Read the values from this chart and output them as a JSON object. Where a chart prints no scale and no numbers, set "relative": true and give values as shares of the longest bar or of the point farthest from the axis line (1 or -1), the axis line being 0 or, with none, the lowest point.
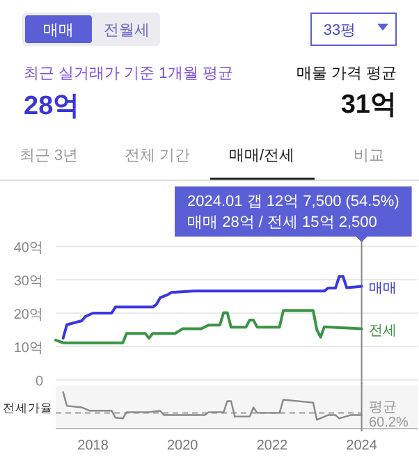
{
  "chart_data": [
    {
      "type": "other",
      "annotations": [
        "매매",
        "전월세",
        "33평",
        "최근 실거래가 기준 1개월 평균",
        "28억",
        "매물 가격 평균",
        "31억",
        "최근 3년",
        "전체 기간",
        "매매/전세",
        "비교"
      ]
    },
    {
      "type": "line",
      "xlim": [
        "2017-03",
        "2025-04"
      ],
      "xticks": [
        "2018",
        "2020",
        "2022",
        "2024"
      ],
      "ylim": [
        0,
        42
      ],
      "yticks": [
        0,
        {
          "value": 10,
          "label": "10억"
        },
        {
          "value": 20,
          "label": "20억"
        },
        {
          "value": 30,
          "label": "30억"
        },
        {
          "value": 40,
          "label": "40억"
        }
      ],
      "grid": "y",
      "tick_labels": "y",
      "marker": "none",
      "line_style": "solid",
      "series": [
        {
          "name": "매매",
          "color": "#3b37e0",
          "x": [
            "2017-05",
            "2017-06",
            "2017-10",
            "2017-11",
            "2018-01",
            "2018-06",
            "2018-07",
            "2019-05",
            "2019-06",
            "2019-07",
            "2019-09",
            "2019-10",
            "2020-04",
            "2023-03",
            "2023-04",
            "2023-06",
            "2023-07",
            "2023-08",
            "2023-09",
            "2024-01"
          ],
          "values": [
            12.5,
            16.5,
            17.7,
            19,
            20,
            20,
            21.8,
            21.8,
            22.6,
            24.6,
            25.5,
            26.2,
            26.6,
            26.6,
            27.5,
            27.5,
            31,
            31,
            27.6,
            28
          ]
        },
        {
          "name": "전세",
          "color": "#3a9445",
          "x": [
            "2017-03",
            "2017-05",
            "2018-09",
            "2018-10",
            "2019-03",
            "2019-04",
            "2019-05",
            "2019-11",
            "2020-01",
            "2020-06",
            "2020-08",
            "2020-11",
            "2020-12",
            "2021-01",
            "2021-02",
            "2021-06",
            "2021-07",
            "2021-08",
            "2021-09",
            "2022-03",
            "2022-04",
            "2022-12",
            "2023-01",
            "2023-02",
            "2023-03",
            "2024-01"
          ],
          "values": [
            11.9,
            11.1,
            11.1,
            13.9,
            13.9,
            12.5,
            13.9,
            13.9,
            15.3,
            15.3,
            16.4,
            16.4,
            20.1,
            20.1,
            15.8,
            15.8,
            17.9,
            17.9,
            15.8,
            15.8,
            20.8,
            20.8,
            15,
            12.8,
            15.9,
            15.3
          ]
        }
      ],
      "ref_lines": [
        {
          "axis": "x",
          "value": "2024-01",
          "color": "#888888"
        }
      ],
      "annotations": [
        "2024.01  갭 12억 7,500 (54.5%)",
        "매매 28억 / 전세 15억 2,500"
      ]
    },
    {
      "type": "line",
      "relative": true,
      "ylabel": "전세가율",
      "xlim": [
        "2017-03",
        "2025-04"
      ],
      "xticks": [
        "2018",
        "2020",
        "2022",
        "2024"
      ],
      "tick_labels": "x",
      "marker": "none",
      "line_style": "solid",
      "series": [
        {
          "color": "#888888",
          "x": [
            "2017-05",
            "2017-06",
            "2017-10",
            "2017-12",
            "2018-06",
            "2018-07",
            "2018-09",
            "2018-10",
            "2019-04",
            "2019-07",
            "2019-08",
            "2020-07",
            "2020-08",
            "2020-12",
            "2021-01",
            "2021-02",
            "2021-03",
            "2021-07",
            "2021-08",
            "2021-09",
            "2022-03",
            "2022-04",
            "2022-12",
            "2023-01",
            "2023-04",
            "2023-06",
            "2023-07",
            "2023-10",
            "2024-01"
          ],
          "values": [
            1.0,
            0.62,
            0.58,
            0.49,
            0.49,
            0.3,
            0.28,
            0.45,
            0.45,
            0.49,
            0.37,
            0.37,
            0.45,
            0.45,
            0.75,
            0.75,
            0.33,
            0.33,
            0.58,
            0.43,
            0.43,
            0.79,
            0.71,
            0.24,
            0.37,
            0.37,
            0.28,
            0.37,
            0.37
          ]
        }
      ],
      "ref_lines": [
        {
          "axis": "y",
          "value": 0.43,
          "label": "평균 60.2%",
          "line_style": "dashed",
          "color": "#999999"
        },
        {
          "axis": "x",
          "value": "2024-01",
          "color": "#888888"
        }
      ]
    }
  ]
}
